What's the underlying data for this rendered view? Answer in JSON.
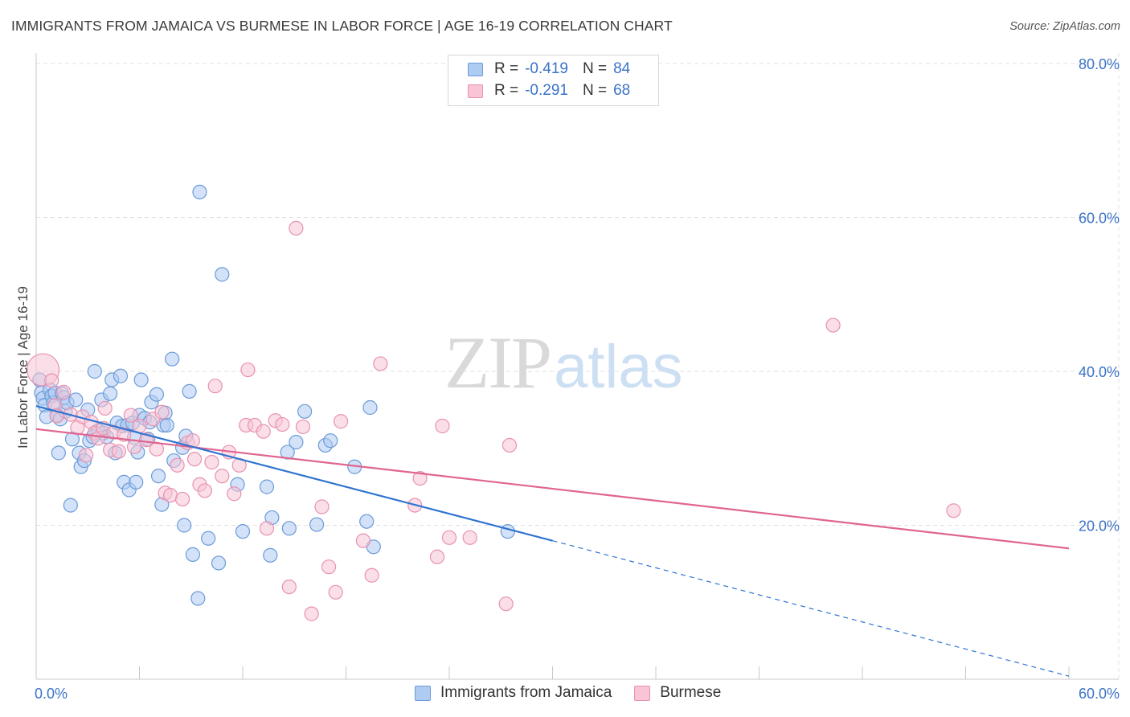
{
  "header": {
    "title": "IMMIGRANTS FROM JAMAICA VS BURMESE IN LABOR FORCE | AGE 16-19 CORRELATION CHART",
    "source": "Source: ZipAtlas.com"
  },
  "legend_stats": [
    {
      "r_label": "R =",
      "r_value": "-0.419",
      "n_label": "N =",
      "n_value": "84"
    },
    {
      "r_label": "R =",
      "r_value": "-0.291",
      "n_label": "N =",
      "n_value": "68"
    }
  ],
  "watermark": {
    "zip": "ZIP",
    "atlas": "atlas"
  },
  "colors": {
    "jamaica_fill": "#aecbf2",
    "jamaica_stroke": "#6b9bd8",
    "jamaica_line": "#2f74d0",
    "burmese_fill": "#f8c4d6",
    "burmese_stroke": "#e891b1",
    "burmese_line": "#e06590",
    "axis_text": "#3b73c8",
    "grid": "#e0e0e0"
  },
  "chart_data": {
    "type": "scatter",
    "title": "IMMIGRANTS FROM JAMAICA VS BURMESE IN LABOR FORCE | AGE 16-19 CORRELATION CHART",
    "xlabel": "",
    "ylabel": "In Labor Force | Age 16-19",
    "xlim": [
      0,
      60
    ],
    "ylim": [
      0,
      80
    ],
    "x_tick_labels": [
      "0.0%",
      "60.0%"
    ],
    "y_ticks": [
      20,
      40,
      60,
      80
    ],
    "y_tick_labels": [
      "20.0%",
      "40.0%",
      "60.0%",
      "80.0%"
    ],
    "grid": true,
    "legend_position": "top-center",
    "series": [
      {
        "name": "Immigrants from Jamaica",
        "r": -0.419,
        "n": 84,
        "trend": {
          "x0": 0,
          "y0": 35.5,
          "x1": 30,
          "y1": 18.0,
          "dashed_to_x": 60,
          "dashed_to_y": 0.4
        },
        "points": [
          [
            0.2,
            38.9
          ],
          [
            0.3,
            37.2
          ],
          [
            0.4,
            36.5
          ],
          [
            0.5,
            35.6
          ],
          [
            0.6,
            34.1
          ],
          [
            0.8,
            37.6
          ],
          [
            0.9,
            36.8
          ],
          [
            1.0,
            35.9
          ],
          [
            1.1,
            37.2
          ],
          [
            1.2,
            34.3
          ],
          [
            1.3,
            29.4
          ],
          [
            1.4,
            33.8
          ],
          [
            1.5,
            37.1
          ],
          [
            1.6,
            36.6
          ],
          [
            1.7,
            34.8
          ],
          [
            1.8,
            35.9
          ],
          [
            2.0,
            22.6
          ],
          [
            2.1,
            31.2
          ],
          [
            2.3,
            36.3
          ],
          [
            2.5,
            29.4
          ],
          [
            2.6,
            27.6
          ],
          [
            2.8,
            28.4
          ],
          [
            3.0,
            35.0
          ],
          [
            3.1,
            31.0
          ],
          [
            3.3,
            31.5
          ],
          [
            3.4,
            40.0
          ],
          [
            3.6,
            32.3
          ],
          [
            3.8,
            36.3
          ],
          [
            3.9,
            32.0
          ],
          [
            4.1,
            31.5
          ],
          [
            4.3,
            37.1
          ],
          [
            4.4,
            38.9
          ],
          [
            4.6,
            29.4
          ],
          [
            4.7,
            33.3
          ],
          [
            4.9,
            39.4
          ],
          [
            5.0,
            32.9
          ],
          [
            5.1,
            25.6
          ],
          [
            5.3,
            33.0
          ],
          [
            5.4,
            24.6
          ],
          [
            5.6,
            33.3
          ],
          [
            5.7,
            31.4
          ],
          [
            5.8,
            25.6
          ],
          [
            5.9,
            29.5
          ],
          [
            6.0,
            34.3
          ],
          [
            6.1,
            38.9
          ],
          [
            6.3,
            33.9
          ],
          [
            6.5,
            31.2
          ],
          [
            6.6,
            33.4
          ],
          [
            6.7,
            36.0
          ],
          [
            7.0,
            37.0
          ],
          [
            7.1,
            26.4
          ],
          [
            7.3,
            22.7
          ],
          [
            7.4,
            33.0
          ],
          [
            7.5,
            34.6
          ],
          [
            7.6,
            33.0
          ],
          [
            7.9,
            41.6
          ],
          [
            8.0,
            28.4
          ],
          [
            8.5,
            30.1
          ],
          [
            8.6,
            20.0
          ],
          [
            8.7,
            31.6
          ],
          [
            8.9,
            37.4
          ],
          [
            9.1,
            16.2
          ],
          [
            9.4,
            10.5
          ],
          [
            9.5,
            63.3
          ],
          [
            10.0,
            18.3
          ],
          [
            10.6,
            15.1
          ],
          [
            10.8,
            52.6
          ],
          [
            11.7,
            25.3
          ],
          [
            12.0,
            19.2
          ],
          [
            13.4,
            25.0
          ],
          [
            13.6,
            16.1
          ],
          [
            13.7,
            21.0
          ],
          [
            14.6,
            29.5
          ],
          [
            14.7,
            19.6
          ],
          [
            15.1,
            30.8
          ],
          [
            15.6,
            34.8
          ],
          [
            16.3,
            20.1
          ],
          [
            16.8,
            30.4
          ],
          [
            17.1,
            31.0
          ],
          [
            18.5,
            27.6
          ],
          [
            19.2,
            20.5
          ],
          [
            19.6,
            17.2
          ],
          [
            19.4,
            35.3
          ],
          [
            27.4,
            19.2
          ]
        ]
      },
      {
        "name": "Burmese",
        "r": -0.291,
        "n": 68,
        "trend": {
          "x0": 0,
          "y0": 32.5,
          "x1": 60,
          "y1": 17.0
        },
        "points": [
          [
            0.4,
            40.2
          ],
          [
            0.9,
            38.8
          ],
          [
            1.1,
            35.6
          ],
          [
            1.2,
            34.2
          ],
          [
            1.6,
            37.3
          ],
          [
            2.0,
            34.4
          ],
          [
            2.4,
            32.7
          ],
          [
            2.7,
            34.1
          ],
          [
            2.9,
            29.1
          ],
          [
            3.2,
            33.4
          ],
          [
            3.4,
            32.0
          ],
          [
            3.6,
            31.3
          ],
          [
            3.9,
            32.6
          ],
          [
            4.0,
            35.2
          ],
          [
            4.3,
            29.8
          ],
          [
            4.5,
            32.1
          ],
          [
            4.8,
            29.6
          ],
          [
            5.1,
            31.8
          ],
          [
            5.5,
            34.3
          ],
          [
            5.7,
            30.2
          ],
          [
            6.0,
            32.9
          ],
          [
            6.4,
            31.1
          ],
          [
            6.8,
            33.8
          ],
          [
            7.0,
            29.9
          ],
          [
            7.3,
            34.7
          ],
          [
            7.5,
            24.2
          ],
          [
            7.8,
            23.9
          ],
          [
            8.2,
            27.8
          ],
          [
            8.5,
            23.4
          ],
          [
            8.8,
            30.7
          ],
          [
            9.1,
            31.0
          ],
          [
            9.2,
            28.6
          ],
          [
            9.5,
            25.3
          ],
          [
            9.8,
            24.5
          ],
          [
            10.2,
            28.2
          ],
          [
            10.4,
            38.1
          ],
          [
            10.8,
            26.4
          ],
          [
            11.2,
            29.5
          ],
          [
            11.5,
            24.1
          ],
          [
            11.8,
            27.8
          ],
          [
            12.2,
            33.0
          ],
          [
            12.3,
            40.2
          ],
          [
            12.7,
            33.0
          ],
          [
            13.2,
            32.2
          ],
          [
            13.4,
            19.6
          ],
          [
            13.9,
            33.6
          ],
          [
            14.3,
            33.1
          ],
          [
            14.7,
            12.0
          ],
          [
            15.1,
            58.6
          ],
          [
            15.5,
            32.8
          ],
          [
            16.0,
            8.5
          ],
          [
            16.6,
            22.4
          ],
          [
            17.0,
            14.6
          ],
          [
            17.4,
            11.3
          ],
          [
            17.7,
            33.5
          ],
          [
            19.0,
            18.0
          ],
          [
            19.5,
            13.5
          ],
          [
            20.0,
            41.0
          ],
          [
            22.0,
            22.6
          ],
          [
            22.3,
            26.1
          ],
          [
            23.3,
            15.9
          ],
          [
            23.6,
            32.9
          ],
          [
            24.0,
            18.4
          ],
          [
            25.2,
            18.4
          ],
          [
            27.3,
            9.8
          ],
          [
            27.5,
            30.4
          ],
          [
            46.3,
            46.0
          ],
          [
            53.3,
            21.9
          ]
        ]
      }
    ]
  },
  "bottom_legend": [
    {
      "label": "Immigrants from Jamaica"
    },
    {
      "label": "Burmese"
    }
  ]
}
